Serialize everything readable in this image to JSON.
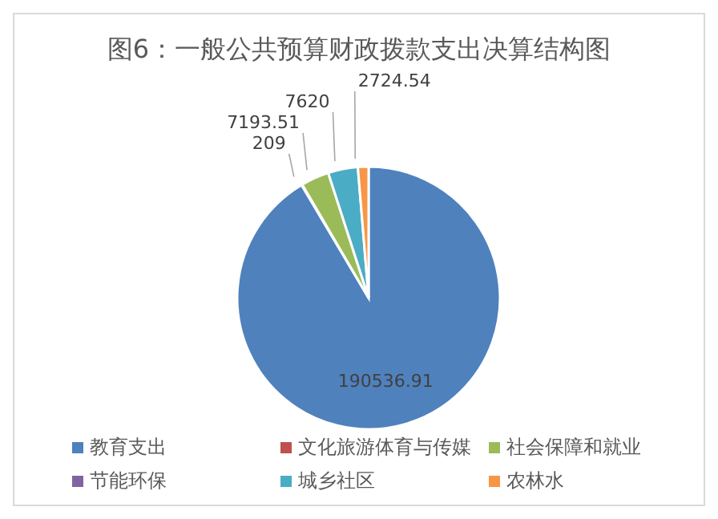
{
  "chart_data": {
    "type": "pie",
    "title": "图6：一般公共预算财政拨款支出决算结构图",
    "categories": [
      "教育支出",
      "文化旅游体育与传媒",
      "社会保障和就业",
      "节能环保",
      "城乡社区",
      "农林水"
    ],
    "values": [
      190536.91,
      209,
      7193.51,
      null,
      7620,
      2724.54
    ],
    "colors": [
      "#4f81bd",
      "#c0504d",
      "#9bbb59",
      "#8064a2",
      "#4bacc6",
      "#f79646"
    ],
    "data_labels": true,
    "legend": "bottom"
  }
}
